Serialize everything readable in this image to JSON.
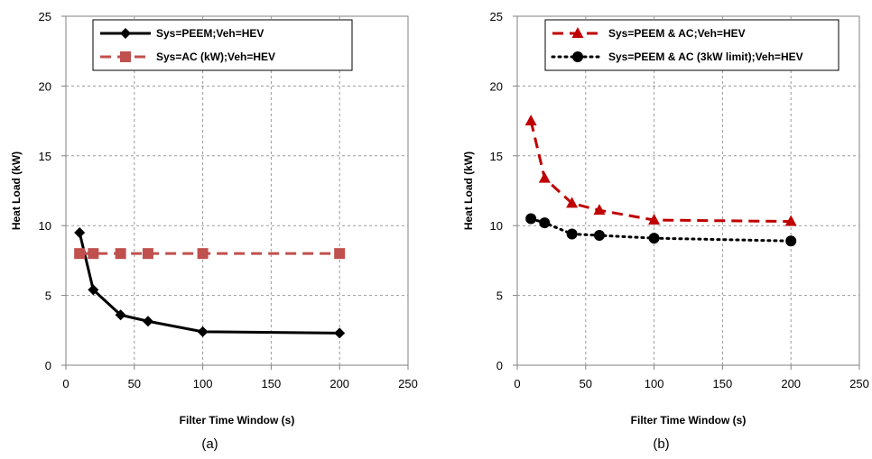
{
  "chart_data": [
    {
      "id": "a",
      "type": "line",
      "panel_label": "(a)",
      "xlabel": "Filter Time Window (s)",
      "ylabel": "Heat Load (kW)",
      "xlim": [
        0,
        250
      ],
      "ylim": [
        0,
        25
      ],
      "xticks": [
        0,
        50,
        100,
        150,
        200,
        250
      ],
      "yticks": [
        0,
        5,
        10,
        15,
        20,
        25
      ],
      "grid": true,
      "legend_position": "top-right",
      "series": [
        {
          "name": "Sys=PEEM;Veh=HEV",
          "color": "#000000",
          "line_style": "solid",
          "marker": "diamond",
          "x": [
            10,
            20,
            40,
            60,
            100,
            200
          ],
          "y": [
            9.5,
            5.4,
            3.6,
            3.15,
            2.4,
            2.3
          ]
        },
        {
          "name": "Sys=AC (kW);Veh=HEV",
          "color": "#c0504d",
          "line_style": "dashed",
          "marker": "square",
          "x": [
            10,
            20,
            40,
            60,
            100,
            200
          ],
          "y": [
            8,
            8,
            8,
            8,
            8,
            8
          ]
        }
      ]
    },
    {
      "id": "b",
      "type": "line",
      "panel_label": "(b)",
      "xlabel": "Filter Time Window (s)",
      "ylabel": "Heat Load (kW)",
      "xlim": [
        0,
        250
      ],
      "ylim": [
        0,
        25
      ],
      "xticks": [
        0,
        50,
        100,
        150,
        200,
        250
      ],
      "yticks": [
        0,
        5,
        10,
        15,
        20,
        25
      ],
      "grid": true,
      "legend_position": "top-right",
      "series": [
        {
          "name": "Sys=PEEM & AC;Veh=HEV",
          "color": "#c00000",
          "line_style": "dashed",
          "marker": "triangle",
          "x": [
            10,
            20,
            40,
            60,
            100,
            200
          ],
          "y": [
            17.5,
            13.4,
            11.6,
            11.1,
            10.4,
            10.3
          ]
        },
        {
          "name": "Sys=PEEM & AC (3kW limit);Veh=HEV",
          "color": "#000000",
          "line_style": "dotted",
          "marker": "circle",
          "x": [
            10,
            20,
            40,
            60,
            100,
            200
          ],
          "y": [
            10.5,
            10.2,
            9.4,
            9.3,
            9.1,
            8.9
          ]
        }
      ]
    }
  ]
}
